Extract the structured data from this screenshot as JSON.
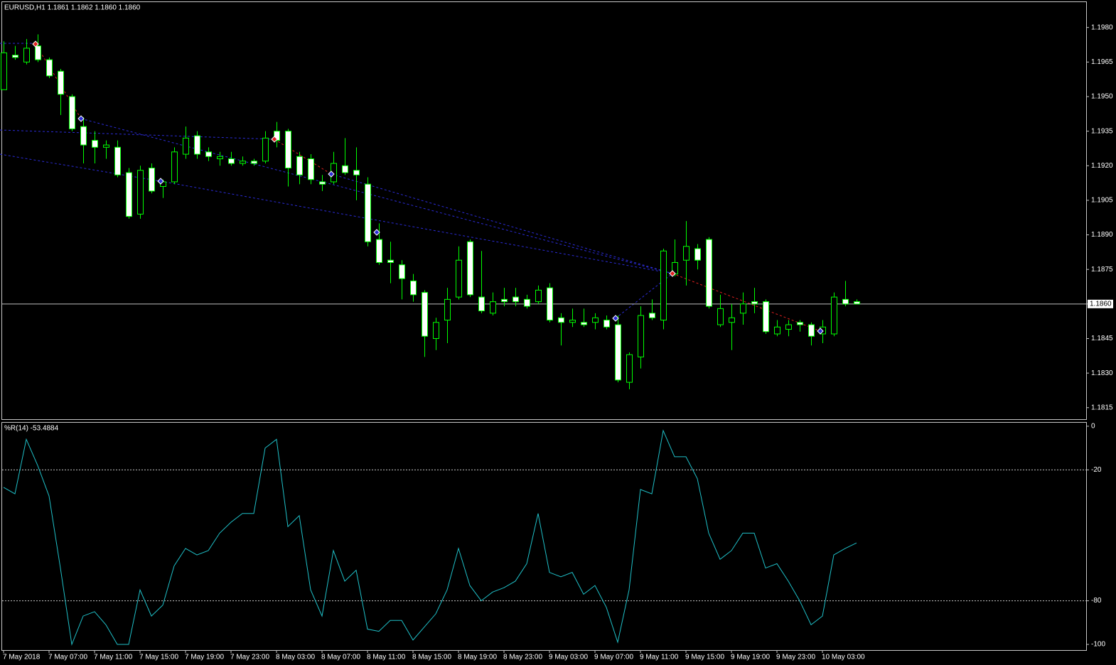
{
  "chart_data": [
    {
      "type": "candlestick",
      "title": "EURUSD,H1  1.1861 1.1862 1.1860 1.1860",
      "categories": [
        "7 May 2018",
        null,
        null,
        null,
        "7 May 07:00",
        null,
        null,
        null,
        "7 May 11:00",
        null,
        null,
        null,
        "7 May 15:00",
        null,
        null,
        null,
        "7 May 19:00",
        null,
        null,
        null,
        "7 May 23:00",
        null,
        null,
        null,
        "8 May 03:00",
        null,
        null,
        null,
        "8 May 07:00",
        null,
        null,
        null,
        "8 May 11:00",
        null,
        null,
        null,
        "8 May 15:00",
        null,
        null,
        null,
        "8 May 19:00",
        null,
        null,
        null,
        "8 May 23:00",
        null,
        null,
        null,
        "9 May 03:00",
        null,
        null,
        null,
        "9 May 07:00",
        null,
        null,
        null,
        "9 May 11:00",
        null,
        null,
        null,
        "9 May 15:00",
        null,
        null,
        null,
        "9 May 19:00",
        null,
        null,
        null,
        "9 May 23:00",
        null,
        null,
        null,
        "10 May 03:00",
        null,
        null,
        null
      ],
      "open": [
        1.1953,
        1.1968,
        1.1965,
        1.1972,
        1.1966,
        1.1961,
        1.195,
        1.1937,
        1.1931,
        1.1928,
        1.1928,
        1.1917,
        1.1899,
        1.1919,
        1.1911,
        1.1913,
        1.1925,
        1.1933,
        1.1926,
        1.1923,
        1.1923,
        1.1921,
        1.1922,
        1.1922,
        1.1935,
        1.1935,
        1.1924,
        1.1923,
        1.1913,
        1.1913,
        1.192,
        1.1918,
        1.1912,
        1.1888,
        1.1879,
        1.1877,
        1.187,
        1.1865,
        1.1845,
        1.1853,
        1.1863,
        1.1887,
        1.1863,
        1.1856,
        1.1862,
        1.1863,
        1.1862,
        1.1861,
        1.1867,
        1.1854,
        1.1852,
        1.1852,
        1.1852,
        1.1853,
        1.1851,
        1.1826,
        1.1837,
        1.1856,
        1.1853,
        1.1873,
        1.1879,
        1.1884,
        1.1888,
        1.1851,
        1.1852,
        1.1856,
        1.1861,
        1.1861,
        1.1847,
        1.1849,
        1.1852,
        1.1851,
        1.1847,
        1.1847,
        1.1862,
        1.1861
      ],
      "high": [
        1.1974,
        1.1972,
        1.1975,
        1.1977,
        1.1967,
        1.1962,
        1.1951,
        1.1941,
        1.1935,
        1.1931,
        1.1931,
        1.1919,
        1.192,
        1.1921,
        1.1914,
        1.1928,
        1.1937,
        1.1935,
        1.1928,
        1.1926,
        1.1926,
        1.1924,
        1.1923,
        1.1935,
        1.1939,
        1.1936,
        1.1926,
        1.1925,
        1.1916,
        1.1926,
        1.1932,
        1.1928,
        1.1915,
        1.1895,
        1.1887,
        1.1879,
        1.1873,
        1.1866,
        1.1854,
        1.1867,
        1.1885,
        1.1888,
        1.1883,
        1.1865,
        1.1867,
        1.1867,
        1.1864,
        1.1868,
        1.1869,
        1.1856,
        1.1858,
        1.1858,
        1.1856,
        1.1855,
        1.1855,
        1.1839,
        1.1859,
        1.1862,
        1.1884,
        1.1888,
        1.1896,
        1.1886,
        1.1889,
        1.1864,
        1.186,
        1.1865,
        1.1867,
        1.1862,
        1.1853,
        1.1853,
        1.1853,
        1.1852,
        1.1853,
        1.1865,
        1.187,
        1.1862
      ],
      "low": [
        1.1953,
        1.1966,
        1.1964,
        1.1965,
        1.1958,
        1.1942,
        1.1935,
        1.1921,
        1.1921,
        1.1923,
        1.1915,
        1.1897,
        1.1897,
        1.1908,
        1.1906,
        1.1912,
        1.1923,
        1.1923,
        1.1922,
        1.192,
        1.192,
        1.192,
        1.192,
        1.1921,
        1.1928,
        1.1911,
        1.1912,
        1.1912,
        1.1909,
        1.1912,
        1.1916,
        1.1905,
        1.1885,
        1.1877,
        1.1869,
        1.1862,
        1.1861,
        1.1837,
        1.184,
        1.1843,
        1.1862,
        1.1863,
        1.1856,
        1.1855,
        1.1859,
        1.1859,
        1.1858,
        1.186,
        1.1852,
        1.1842,
        1.185,
        1.185,
        1.1849,
        1.1849,
        1.1826,
        1.1823,
        1.1832,
        1.1853,
        1.1849,
        1.1872,
        1.1868,
        1.1875,
        1.1858,
        1.185,
        1.184,
        1.1851,
        1.1856,
        1.1847,
        1.1846,
        1.1846,
        1.1848,
        1.1842,
        1.1843,
        1.1846,
        1.1859,
        1.186
      ],
      "close": [
        1.1969,
        1.1967,
        1.1971,
        1.1966,
        1.1959,
        1.1951,
        1.1936,
        1.1929,
        1.1928,
        1.1929,
        1.1916,
        1.1898,
        1.1918,
        1.1909,
        1.1913,
        1.1926,
        1.1932,
        1.1925,
        1.1924,
        1.1924,
        1.1921,
        1.1922,
        1.1921,
        1.1932,
        1.1931,
        1.1919,
        1.1916,
        1.1914,
        1.1912,
        1.1921,
        1.1917,
        1.1916,
        1.1887,
        1.1878,
        1.1878,
        1.1871,
        1.1864,
        1.1846,
        1.1852,
        1.1862,
        1.1879,
        1.1864,
        1.1857,
        1.1861,
        1.1861,
        1.1861,
        1.1859,
        1.1866,
        1.1853,
        1.1852,
        1.1853,
        1.1851,
        1.1854,
        1.185,
        1.1827,
        1.1838,
        1.1855,
        1.1854,
        1.1883,
        1.1878,
        1.1885,
        1.1879,
        1.1859,
        1.1858,
        1.1854,
        1.186,
        1.186,
        1.1848,
        1.185,
        1.1851,
        1.1851,
        1.1846,
        1.185,
        1.1863,
        1.186,
        1.186
      ],
      "bull_color": "#000000",
      "bear_color": "#ffffff",
      "wick_color": "#00ff00",
      "ylim": [
        1.181,
        1.1991
      ],
      "yticks": [
        {
          "value": 1.198,
          "label": "1.1980"
        },
        1.1965,
        {
          "value": 1.195,
          "label": "1.1950"
        },
        1.1935,
        {
          "value": 1.192,
          "label": "1.1920"
        },
        1.1905,
        {
          "value": 1.189,
          "label": "1.1890"
        },
        1.1875,
        {
          "value": 1.186,
          "label": "1.1860"
        },
        1.1845,
        {
          "value": 1.183,
          "label": "1.1830"
        },
        1.1815
      ],
      "current_price": {
        "value": 1.186,
        "label": "1.1860"
      },
      "current_price_color": "#c0c0c0"
    },
    {
      "type": "line",
      "title": "%R(14) -53.4884",
      "color": "#1fc0c8",
      "values": [
        -28,
        -31,
        -6,
        -18,
        -32,
        -65,
        -100,
        -87,
        -85,
        -91,
        -100,
        -100,
        -75,
        -87,
        -82,
        -64,
        -56,
        -59,
        -57,
        -49,
        -44,
        -40,
        -40,
        -10,
        -6,
        -46,
        -41,
        -75,
        -87,
        -57,
        -71,
        -66,
        -93,
        -94,
        -89,
        -89,
        -98,
        -92,
        -86,
        -75,
        -56,
        -73,
        -80,
        -76,
        -74,
        -71,
        -63,
        -40,
        -67,
        -69,
        -67,
        -77,
        -73,
        -83,
        -99,
        -75,
        -29,
        -31,
        -2,
        -14,
        -14,
        -24,
        -49,
        -61,
        -57,
        -49,
        -49,
        -65,
        -63,
        -71,
        -80,
        -91,
        -87,
        -59,
        -56,
        -53.4884
      ],
      "ylim": [
        -102.6,
        1.6
      ],
      "yticks": [
        0,
        -20,
        -80,
        -100
      ],
      "levels": [
        -20,
        -80
      ],
      "level_color": "#c8c8c8"
    }
  ]
}
